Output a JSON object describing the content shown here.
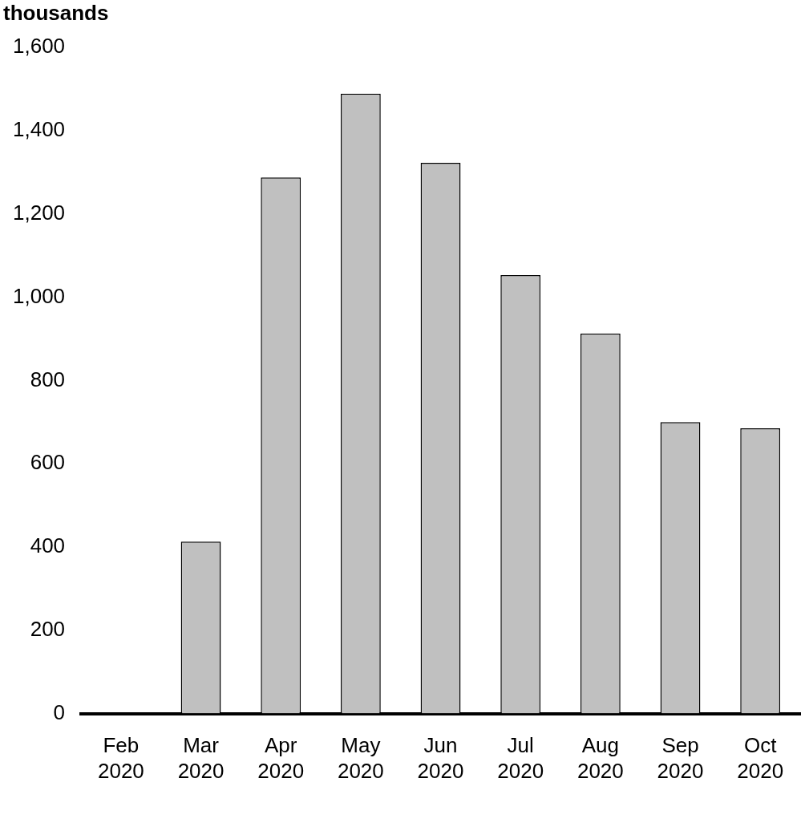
{
  "chart_data": {
    "type": "bar",
    "y_label": "thousands",
    "categories": [
      "Feb 2020",
      "Mar 2020",
      "Apr 2020",
      "May 2020",
      "Jun 2020",
      "Jul 2020",
      "Aug 2020",
      "Sep 2020",
      "Oct 2020"
    ],
    "values": [
      0,
      413,
      1288,
      1489,
      1323,
      1053,
      913,
      700,
      685
    ],
    "color": "#c0c0c0",
    "ylim": [
      0,
      1600
    ],
    "yticks": [
      0,
      200,
      400,
      600,
      800,
      {
        "value": 1000,
        "label": "1,000"
      },
      {
        "value": 1200,
        "label": "1,200"
      },
      {
        "value": 1400,
        "label": "1,400"
      },
      {
        "value": 1600,
        "label": "1,600"
      }
    ],
    "grid": false
  }
}
